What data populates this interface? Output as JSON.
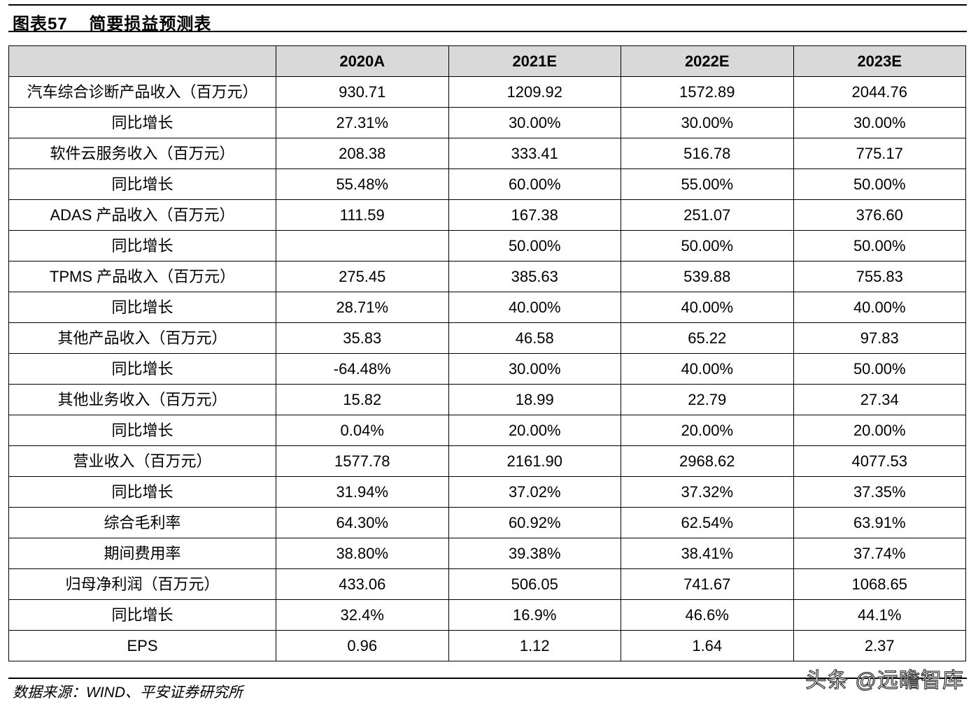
{
  "header": {
    "figure_title": "图表57    简要损益预测表"
  },
  "table": {
    "columns": [
      "",
      "2020A",
      "2021E",
      "2022E",
      "2023E"
    ],
    "rows": [
      {
        "label": "汽车综合诊断产品收入（百万元）",
        "values": [
          "930.71",
          "1209.92",
          "1572.89",
          "2044.76"
        ]
      },
      {
        "label": "同比增长",
        "values": [
          "27.31%",
          "30.00%",
          "30.00%",
          "30.00%"
        ]
      },
      {
        "label": "软件云服务收入（百万元）",
        "values": [
          "208.38",
          "333.41",
          "516.78",
          "775.17"
        ]
      },
      {
        "label": "同比增长",
        "values": [
          "55.48%",
          "60.00%",
          "55.00%",
          "50.00%"
        ]
      },
      {
        "label": "ADAS 产品收入（百万元）",
        "values": [
          "111.59",
          "167.38",
          "251.07",
          "376.60"
        ]
      },
      {
        "label": "同比增长",
        "values": [
          "",
          "50.00%",
          "50.00%",
          "50.00%"
        ]
      },
      {
        "label": "TPMS 产品收入（百万元）",
        "values": [
          "275.45",
          "385.63",
          "539.88",
          "755.83"
        ]
      },
      {
        "label": "同比增长",
        "values": [
          "28.71%",
          "40.00%",
          "40.00%",
          "40.00%"
        ]
      },
      {
        "label": "其他产品收入（百万元）",
        "values": [
          "35.83",
          "46.58",
          "65.22",
          "97.83"
        ]
      },
      {
        "label": "同比增长",
        "values": [
          "-64.48%",
          "30.00%",
          "40.00%",
          "50.00%"
        ]
      },
      {
        "label": "其他业务收入（百万元）",
        "values": [
          "15.82",
          "18.99",
          "22.79",
          "27.34"
        ]
      },
      {
        "label": "同比增长",
        "values": [
          "0.04%",
          "20.00%",
          "20.00%",
          "20.00%"
        ]
      },
      {
        "label": "营业收入（百万元）",
        "values": [
          "1577.78",
          "2161.90",
          "2968.62",
          "4077.53"
        ]
      },
      {
        "label": "同比增长",
        "values": [
          "31.94%",
          "37.02%",
          "37.32%",
          "37.35%"
        ]
      },
      {
        "label": "综合毛利率",
        "values": [
          "64.30%",
          "60.92%",
          "62.54%",
          "63.91%"
        ]
      },
      {
        "label": "期间费用率",
        "values": [
          "38.80%",
          "39.38%",
          "38.41%",
          "37.74%"
        ]
      },
      {
        "label": "归母净利润（百万元）",
        "values": [
          "433.06",
          "506.05",
          "741.67",
          "1068.65"
        ]
      },
      {
        "label": "同比增长",
        "values": [
          "32.4%",
          "16.9%",
          "46.6%",
          "44.1%"
        ]
      },
      {
        "label": "EPS",
        "values": [
          "0.96",
          "1.12",
          "1.64",
          "2.37"
        ]
      }
    ]
  },
  "footer": {
    "source": "数据来源：WIND、平安证券研究所",
    "watermark": "头条 @远瞻智库"
  },
  "colors": {
    "header_fill": "#d9d9d9",
    "border": "#000000"
  }
}
